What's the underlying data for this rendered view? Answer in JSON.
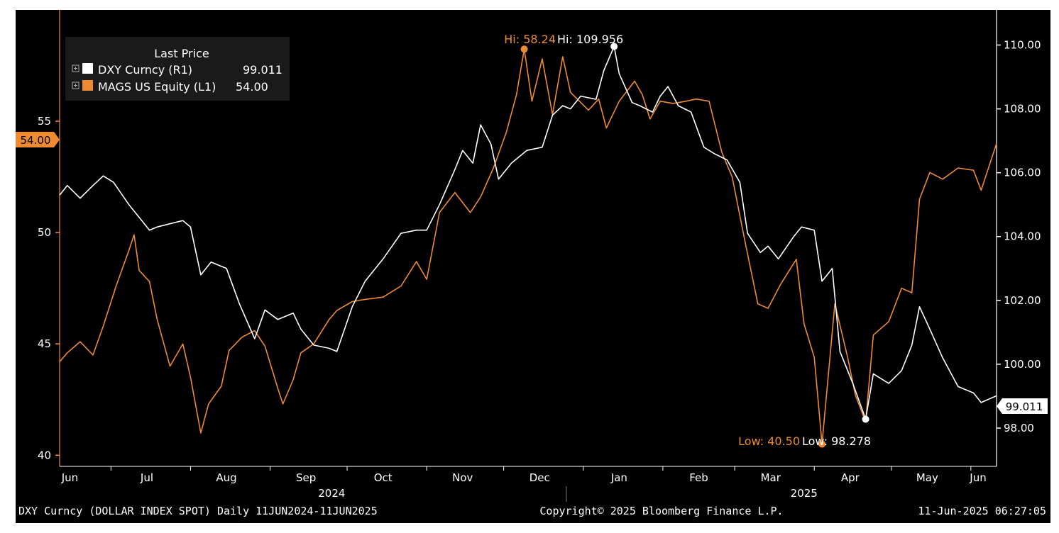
{
  "chart_data": {
    "type": "line",
    "legend": {
      "title": "Last Price",
      "placement": "top-left",
      "entries": [
        {
          "name": "DXY Curncy  (R1)",
          "value": "99.011",
          "color": "#ffffff"
        },
        {
          "name": "MAGS US Equity  (L1)",
          "value": "54.00",
          "color": "#ee8a32"
        }
      ]
    },
    "x_axis": {
      "months": [
        "Jun",
        "Jul",
        "Aug",
        "Sep",
        "Oct",
        "Nov",
        "Dec",
        "Jan",
        "Feb",
        "Mar",
        "Apr",
        "May",
        "Jun"
      ],
      "years": [
        "2024",
        "2025"
      ]
    },
    "left_axis": {
      "ticks": [
        "40",
        "45",
        "50",
        "55"
      ],
      "range": [
        39.5,
        60.0
      ],
      "last_value_label": "54.00",
      "color": "#ee8a32"
    },
    "right_axis": {
      "ticks": [
        "98.00",
        "100.00",
        "102.00",
        "104.00",
        "106.00",
        "108.00",
        "110.00"
      ],
      "range": [
        96.8,
        111.1
      ],
      "last_value_label": "99.011",
      "color": "#ffffff"
    },
    "annotations": {
      "mags_hi": {
        "text": "Hi: 58.24",
        "date": "2024-12-09",
        "value": 58.24
      },
      "dxy_hi": {
        "text": "Hi: 109.956",
        "date": "2025-01-13",
        "value": 109.956
      },
      "mags_low": {
        "text": "Low: 40.50",
        "date": "2025-04-04",
        "value": 40.5
      },
      "dxy_low": {
        "text": "Low: 98.278",
        "date": "2025-04-21",
        "value": 98.278
      }
    },
    "series": [
      {
        "name": "DXY Curncy",
        "axis": "right",
        "color": "#ffffff",
        "points": [
          [
            "2024-06-11",
            105.3
          ],
          [
            "2024-06-14",
            105.6
          ],
          [
            "2024-06-19",
            105.2
          ],
          [
            "2024-06-24",
            105.6
          ],
          [
            "2024-06-28",
            105.9
          ],
          [
            "2024-07-02",
            105.7
          ],
          [
            "2024-07-08",
            105.0
          ],
          [
            "2024-07-12",
            104.6
          ],
          [
            "2024-07-16",
            104.2
          ],
          [
            "2024-07-19",
            104.3
          ],
          [
            "2024-07-24",
            104.4
          ],
          [
            "2024-07-29",
            104.5
          ],
          [
            "2024-08-01",
            104.3
          ],
          [
            "2024-08-05",
            102.8
          ],
          [
            "2024-08-09",
            103.2
          ],
          [
            "2024-08-15",
            103.0
          ],
          [
            "2024-08-20",
            101.9
          ],
          [
            "2024-08-26",
            100.8
          ],
          [
            "2024-08-30",
            101.7
          ],
          [
            "2024-09-04",
            101.4
          ],
          [
            "2024-09-10",
            101.6
          ],
          [
            "2024-09-13",
            101.1
          ],
          [
            "2024-09-18",
            100.6
          ],
          [
            "2024-09-24",
            100.5
          ],
          [
            "2024-09-27",
            100.4
          ],
          [
            "2024-10-03",
            101.8
          ],
          [
            "2024-10-08",
            102.6
          ],
          [
            "2024-10-15",
            103.3
          ],
          [
            "2024-10-22",
            104.1
          ],
          [
            "2024-10-28",
            104.2
          ],
          [
            "2024-11-01",
            104.2
          ],
          [
            "2024-11-06",
            105.0
          ],
          [
            "2024-11-12",
            106.1
          ],
          [
            "2024-11-15",
            106.7
          ],
          [
            "2024-11-19",
            106.3
          ],
          [
            "2024-11-22",
            107.5
          ],
          [
            "2024-11-26",
            106.9
          ],
          [
            "2024-11-29",
            105.8
          ],
          [
            "2024-12-04",
            106.3
          ],
          [
            "2024-12-10",
            106.7
          ],
          [
            "2024-12-16",
            106.8
          ],
          [
            "2024-12-20",
            107.8
          ],
          [
            "2024-12-24",
            108.1
          ],
          [
            "2024-12-27",
            108.0
          ],
          [
            "2024-12-31",
            108.4
          ],
          [
            "2025-01-06",
            108.3
          ],
          [
            "2025-01-09",
            109.2
          ],
          [
            "2025-01-13",
            109.956
          ],
          [
            "2025-01-15",
            109.1
          ],
          [
            "2025-01-20",
            108.2
          ],
          [
            "2025-01-23",
            108.1
          ],
          [
            "2025-01-28",
            107.9
          ],
          [
            "2025-01-31",
            108.4
          ],
          [
            "2025-02-03",
            108.7
          ],
          [
            "2025-02-07",
            108.1
          ],
          [
            "2025-02-12",
            107.9
          ],
          [
            "2025-02-17",
            106.8
          ],
          [
            "2025-02-21",
            106.6
          ],
          [
            "2025-02-26",
            106.4
          ],
          [
            "2025-03-03",
            105.7
          ],
          [
            "2025-03-06",
            104.1
          ],
          [
            "2025-03-11",
            103.5
          ],
          [
            "2025-03-14",
            103.7
          ],
          [
            "2025-03-18",
            103.3
          ],
          [
            "2025-03-24",
            104.0
          ],
          [
            "2025-03-27",
            104.3
          ],
          [
            "2025-04-01",
            104.2
          ],
          [
            "2025-04-04",
            102.6
          ],
          [
            "2025-04-08",
            103.0
          ],
          [
            "2025-04-11",
            100.4
          ],
          [
            "2025-04-16",
            99.4
          ],
          [
            "2025-04-21",
            98.278
          ],
          [
            "2025-04-24",
            99.7
          ],
          [
            "2025-04-30",
            99.4
          ],
          [
            "2025-05-05",
            99.8
          ],
          [
            "2025-05-09",
            100.6
          ],
          [
            "2025-05-12",
            101.8
          ],
          [
            "2025-05-16",
            101.1
          ],
          [
            "2025-05-21",
            100.2
          ],
          [
            "2025-05-27",
            99.3
          ],
          [
            "2025-06-02",
            99.1
          ],
          [
            "2025-06-05",
            98.8
          ],
          [
            "2025-06-11",
            99.011
          ]
        ]
      },
      {
        "name": "MAGS US Equity",
        "axis": "left",
        "color": "#ee8a32",
        "points": [
          [
            "2024-06-11",
            44.2
          ],
          [
            "2024-06-14",
            44.6
          ],
          [
            "2024-06-19",
            45.1
          ],
          [
            "2024-06-24",
            44.5
          ],
          [
            "2024-06-28",
            45.8
          ],
          [
            "2024-07-03",
            47.6
          ],
          [
            "2024-07-08",
            49.2
          ],
          [
            "2024-07-10",
            49.9
          ],
          [
            "2024-07-12",
            48.3
          ],
          [
            "2024-07-16",
            47.8
          ],
          [
            "2024-07-19",
            46.1
          ],
          [
            "2024-07-24",
            44.0
          ],
          [
            "2024-07-29",
            45.0
          ],
          [
            "2024-08-01",
            43.5
          ],
          [
            "2024-08-05",
            41.0
          ],
          [
            "2024-08-08",
            42.3
          ],
          [
            "2024-08-13",
            43.1
          ],
          [
            "2024-08-16",
            44.7
          ],
          [
            "2024-08-21",
            45.3
          ],
          [
            "2024-08-26",
            45.6
          ],
          [
            "2024-08-30",
            44.9
          ],
          [
            "2024-09-04",
            43.0
          ],
          [
            "2024-09-06",
            42.3
          ],
          [
            "2024-09-10",
            43.4
          ],
          [
            "2024-09-13",
            44.6
          ],
          [
            "2024-09-18",
            45.0
          ],
          [
            "2024-09-24",
            46.1
          ],
          [
            "2024-09-27",
            46.5
          ],
          [
            "2024-10-03",
            46.9
          ],
          [
            "2024-10-08",
            47.0
          ],
          [
            "2024-10-15",
            47.1
          ],
          [
            "2024-10-22",
            47.6
          ],
          [
            "2024-10-28",
            48.7
          ],
          [
            "2024-11-01",
            47.9
          ],
          [
            "2024-11-06",
            50.9
          ],
          [
            "2024-11-12",
            51.8
          ],
          [
            "2024-11-18",
            50.9
          ],
          [
            "2024-11-22",
            51.6
          ],
          [
            "2024-11-27",
            52.9
          ],
          [
            "2024-12-02",
            54.5
          ],
          [
            "2024-12-06",
            56.2
          ],
          [
            "2024-12-09",
            58.24
          ],
          [
            "2024-12-12",
            55.9
          ],
          [
            "2024-12-16",
            57.8
          ],
          [
            "2024-12-20",
            55.3
          ],
          [
            "2024-12-24",
            57.9
          ],
          [
            "2024-12-27",
            56.3
          ],
          [
            "2025-01-03",
            55.5
          ],
          [
            "2025-01-07",
            56.0
          ],
          [
            "2025-01-10",
            54.7
          ],
          [
            "2025-01-15",
            55.9
          ],
          [
            "2025-01-21",
            56.8
          ],
          [
            "2025-01-24",
            56.2
          ],
          [
            "2025-01-27",
            55.1
          ],
          [
            "2025-01-31",
            55.9
          ],
          [
            "2025-02-05",
            55.8
          ],
          [
            "2025-02-10",
            55.9
          ],
          [
            "2025-02-14",
            56.0
          ],
          [
            "2025-02-19",
            55.9
          ],
          [
            "2025-02-24",
            53.6
          ],
          [
            "2025-02-28",
            52.5
          ],
          [
            "2025-03-05",
            49.6
          ],
          [
            "2025-03-10",
            46.8
          ],
          [
            "2025-03-14",
            46.6
          ],
          [
            "2025-03-19",
            47.7
          ],
          [
            "2025-03-25",
            48.8
          ],
          [
            "2025-03-28",
            45.9
          ],
          [
            "2025-04-01",
            44.4
          ],
          [
            "2025-04-04",
            40.5
          ],
          [
            "2025-04-09",
            46.8
          ],
          [
            "2025-04-14",
            44.4
          ],
          [
            "2025-04-17",
            42.7
          ],
          [
            "2025-04-21",
            41.5
          ],
          [
            "2025-04-24",
            45.4
          ],
          [
            "2025-04-30",
            46.0
          ],
          [
            "2025-05-05",
            47.5
          ],
          [
            "2025-05-09",
            47.3
          ],
          [
            "2025-05-12",
            51.5
          ],
          [
            "2025-05-16",
            52.7
          ],
          [
            "2025-05-21",
            52.4
          ],
          [
            "2025-05-27",
            52.9
          ],
          [
            "2025-06-02",
            52.8
          ],
          [
            "2025-06-05",
            51.9
          ],
          [
            "2025-06-11",
            54.0
          ]
        ]
      }
    ]
  },
  "footer": {
    "left": "DXY Curncy (DOLLAR INDEX SPOT)  Daily 11JUN2024-11JUN2025",
    "center": "Copyright© 2025 Bloomberg Finance L.P.",
    "right": "11-Jun-2025 06:27:05"
  }
}
